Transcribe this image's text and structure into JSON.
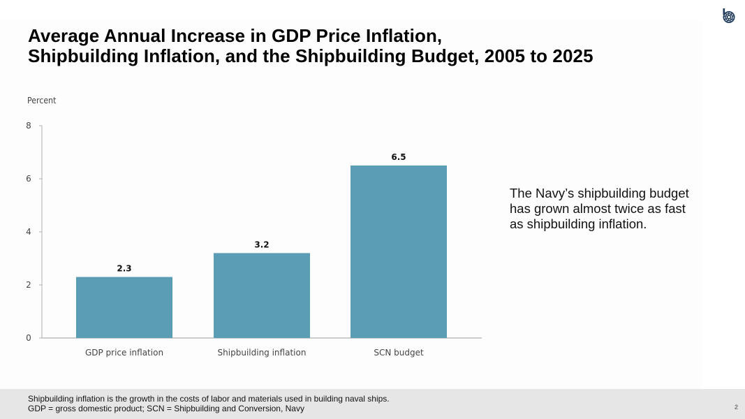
{
  "slide": {
    "title_line1": "Average Annual Increase in GDP Price Inflation,",
    "title_line2": "Shipbuilding Inflation, and the Shipbuilding Budget, 2005 to 2025",
    "logo_icon": "cbo-logo-icon",
    "annotation": "The Navy’s shipbuilding budget has grown almost twice as fast as shipbuilding inflation.",
    "footnote_line1": "Shipbuilding inflation is the growth in the costs of labor and materials used in building naval ships.",
    "footnote_line2": "GDP = gross domestic product; SCN = Shipbuilding and Conversion, Navy",
    "page_number": "2"
  },
  "colors": {
    "bar": "#5b9db5",
    "axis": "#b0b0b0",
    "logo": "#1f3a5a",
    "footer_bg": "#e6e6e6"
  },
  "chart_data": {
    "type": "bar",
    "title": "Average Annual Increase in GDP Price Inflation, Shipbuilding Inflation, and the Shipbuilding Budget, 2005 to 2025",
    "xlabel": "",
    "ylabel": "Percent",
    "categories": [
      "GDP price inflation",
      "Shipbuilding inflation",
      "SCN budget"
    ],
    "values": [
      2.3,
      3.2,
      6.5
    ],
    "data_labels": [
      "2.3",
      "3.2",
      "6.5"
    ],
    "ylim": [
      0,
      8
    ],
    "yticks": [
      0,
      2,
      4,
      6,
      8
    ],
    "grid": false,
    "legend": "none"
  }
}
